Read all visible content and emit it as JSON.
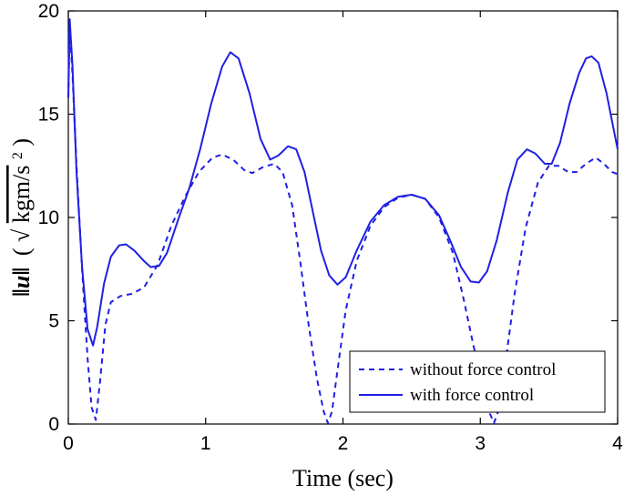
{
  "chart_data": {
    "type": "line",
    "xlabel": "Time (sec)",
    "ylabel_parts": {
      "norm": "‖u‖",
      "open": "(",
      "root_symbol": "√",
      "root_content": "kgm/s",
      "exponent": "2",
      "close": ")"
    },
    "xlim": [
      0,
      4
    ],
    "ylim": [
      0,
      20
    ],
    "x_ticks": [
      "0",
      "1",
      "2",
      "3",
      "4"
    ],
    "y_ticks": [
      "0",
      "5",
      "10",
      "15",
      "20"
    ],
    "legend_position": "lower-right",
    "series": [
      {
        "name": "without force control",
        "style": "dashed",
        "color": "#1f1fe6",
        "points": [
          [
            0.0,
            15.8
          ],
          [
            0.01,
            19.2
          ],
          [
            0.03,
            17.0
          ],
          [
            0.06,
            12.5
          ],
          [
            0.1,
            7.5
          ],
          [
            0.14,
            3.2
          ],
          [
            0.17,
            0.8
          ],
          [
            0.2,
            0.2
          ],
          [
            0.23,
            2.0
          ],
          [
            0.27,
            4.8
          ],
          [
            0.31,
            5.9
          ],
          [
            0.38,
            6.2
          ],
          [
            0.46,
            6.3
          ],
          [
            0.55,
            6.6
          ],
          [
            0.65,
            7.7
          ],
          [
            0.75,
            9.6
          ],
          [
            0.85,
            11.0
          ],
          [
            0.95,
            12.2
          ],
          [
            1.05,
            12.9
          ],
          [
            1.12,
            13.05
          ],
          [
            1.2,
            12.8
          ],
          [
            1.28,
            12.3
          ],
          [
            1.34,
            12.15
          ],
          [
            1.42,
            12.45
          ],
          [
            1.5,
            12.6
          ],
          [
            1.56,
            12.2
          ],
          [
            1.63,
            10.6
          ],
          [
            1.69,
            7.8
          ],
          [
            1.75,
            4.8
          ],
          [
            1.81,
            2.2
          ],
          [
            1.86,
            0.6
          ],
          [
            1.89,
            0.05
          ],
          [
            1.92,
            0.6
          ],
          [
            1.96,
            2.6
          ],
          [
            2.02,
            5.5
          ],
          [
            2.1,
            7.9
          ],
          [
            2.2,
            9.6
          ],
          [
            2.3,
            10.5
          ],
          [
            2.4,
            10.95
          ],
          [
            2.5,
            11.1
          ],
          [
            2.6,
            10.9
          ],
          [
            2.7,
            10.0
          ],
          [
            2.8,
            8.3
          ],
          [
            2.88,
            6.0
          ],
          [
            2.95,
            3.8
          ],
          [
            3.02,
            1.8
          ],
          [
            3.07,
            0.5
          ],
          [
            3.1,
            0.05
          ],
          [
            3.13,
            0.6
          ],
          [
            3.18,
            2.8
          ],
          [
            3.25,
            6.3
          ],
          [
            3.33,
            9.5
          ],
          [
            3.42,
            11.7
          ],
          [
            3.5,
            12.5
          ],
          [
            3.57,
            12.5
          ],
          [
            3.64,
            12.2
          ],
          [
            3.7,
            12.2
          ],
          [
            3.77,
            12.6
          ],
          [
            3.84,
            12.9
          ],
          [
            3.9,
            12.6
          ],
          [
            3.96,
            12.2
          ],
          [
            4.0,
            12.1
          ]
        ]
      },
      {
        "name": "with force control",
        "style": "solid",
        "color": "#1f1fe6",
        "points": [
          [
            0.0,
            15.8
          ],
          [
            0.01,
            19.6
          ],
          [
            0.03,
            17.4
          ],
          [
            0.06,
            12.2
          ],
          [
            0.1,
            7.6
          ],
          [
            0.14,
            4.6
          ],
          [
            0.18,
            3.8
          ],
          [
            0.21,
            4.7
          ],
          [
            0.26,
            6.8
          ],
          [
            0.31,
            8.1
          ],
          [
            0.37,
            8.65
          ],
          [
            0.42,
            8.7
          ],
          [
            0.48,
            8.4
          ],
          [
            0.55,
            7.9
          ],
          [
            0.6,
            7.6
          ],
          [
            0.66,
            7.65
          ],
          [
            0.72,
            8.3
          ],
          [
            0.8,
            9.9
          ],
          [
            0.88,
            11.4
          ],
          [
            0.96,
            13.3
          ],
          [
            1.04,
            15.5
          ],
          [
            1.12,
            17.3
          ],
          [
            1.18,
            18.0
          ],
          [
            1.24,
            17.7
          ],
          [
            1.32,
            16.0
          ],
          [
            1.4,
            13.8
          ],
          [
            1.47,
            12.8
          ],
          [
            1.53,
            13.0
          ],
          [
            1.6,
            13.45
          ],
          [
            1.66,
            13.3
          ],
          [
            1.72,
            12.2
          ],
          [
            1.78,
            10.3
          ],
          [
            1.84,
            8.4
          ],
          [
            1.9,
            7.2
          ],
          [
            1.96,
            6.75
          ],
          [
            2.02,
            7.1
          ],
          [
            2.1,
            8.4
          ],
          [
            2.2,
            9.8
          ],
          [
            2.3,
            10.6
          ],
          [
            2.4,
            11.0
          ],
          [
            2.5,
            11.1
          ],
          [
            2.6,
            10.9
          ],
          [
            2.7,
            10.1
          ],
          [
            2.78,
            8.9
          ],
          [
            2.86,
            7.6
          ],
          [
            2.93,
            6.9
          ],
          [
            2.99,
            6.85
          ],
          [
            3.05,
            7.4
          ],
          [
            3.12,
            8.9
          ],
          [
            3.2,
            11.2
          ],
          [
            3.27,
            12.8
          ],
          [
            3.34,
            13.3
          ],
          [
            3.4,
            13.1
          ],
          [
            3.47,
            12.6
          ],
          [
            3.52,
            12.6
          ],
          [
            3.58,
            13.6
          ],
          [
            3.65,
            15.5
          ],
          [
            3.72,
            17.0
          ],
          [
            3.77,
            17.7
          ],
          [
            3.81,
            17.8
          ],
          [
            3.86,
            17.5
          ],
          [
            3.92,
            16.0
          ],
          [
            3.97,
            14.3
          ],
          [
            4.0,
            13.3
          ]
        ]
      }
    ]
  }
}
